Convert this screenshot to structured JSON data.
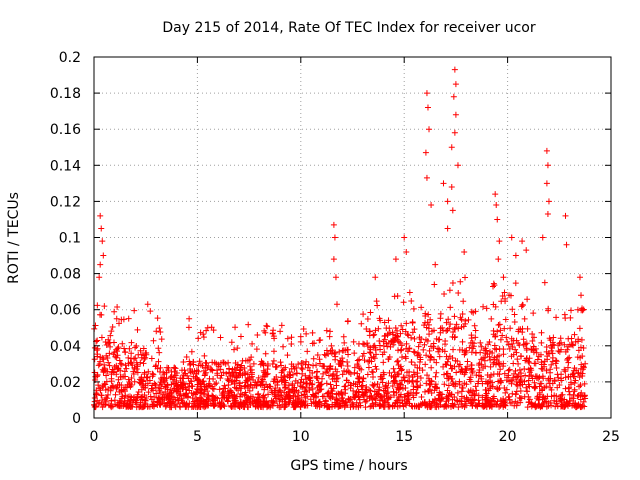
{
  "chart_data": {
    "type": "scatter",
    "title": "Day 215 of 2014, Rate Of TEC Index for receiver ucor",
    "xlabel": "GPS time / hours",
    "ylabel": "ROTI / TECUs",
    "xlim": [
      0,
      25
    ],
    "ylim": [
      0,
      0.2
    ],
    "xticks": [
      0,
      5,
      10,
      15,
      20,
      25
    ],
    "xtick_labels": [
      "0",
      "5",
      "10",
      "15",
      "20",
      "25"
    ],
    "yticks": [
      0,
      0.02,
      0.04,
      0.06,
      0.08,
      0.1,
      0.12,
      0.14,
      0.16,
      0.18,
      0.2
    ],
    "ytick_labels": [
      "0",
      "0.02",
      "0.04",
      "0.06",
      "0.08",
      "0.1",
      "0.12",
      "0.14",
      "0.16",
      "0.18",
      "0.2"
    ],
    "grid": true,
    "marker": "+",
    "color": "#ff0000",
    "series": [
      {
        "name": "ROTI",
        "description_of_distribution": "dense band 0.005-0.04 across 0-23.7 h",
        "spikes": [
          {
            "x": 0.3,
            "y": 0.112
          },
          {
            "x": 0.35,
            "y": 0.105
          },
          {
            "x": 0.4,
            "y": 0.098
          },
          {
            "x": 0.45,
            "y": 0.09
          },
          {
            "x": 0.3,
            "y": 0.085
          },
          {
            "x": 0.25,
            "y": 0.078
          },
          {
            "x": 0.5,
            "y": 0.062
          },
          {
            "x": 1.1,
            "y": 0.055
          },
          {
            "x": 2.6,
            "y": 0.063
          },
          {
            "x": 4.6,
            "y": 0.055
          },
          {
            "x": 5.5,
            "y": 0.05
          },
          {
            "x": 7.9,
            "y": 0.046
          },
          {
            "x": 9.0,
            "y": 0.048
          },
          {
            "x": 11.6,
            "y": 0.107
          },
          {
            "x": 11.65,
            "y": 0.1
          },
          {
            "x": 11.6,
            "y": 0.088
          },
          {
            "x": 11.7,
            "y": 0.078
          },
          {
            "x": 11.75,
            "y": 0.063
          },
          {
            "x": 13.6,
            "y": 0.078
          },
          {
            "x": 14.6,
            "y": 0.088
          },
          {
            "x": 15.0,
            "y": 0.1
          },
          {
            "x": 15.1,
            "y": 0.092
          },
          {
            "x": 16.1,
            "y": 0.18
          },
          {
            "x": 16.15,
            "y": 0.172
          },
          {
            "x": 16.2,
            "y": 0.16
          },
          {
            "x": 16.05,
            "y": 0.147
          },
          {
            "x": 16.1,
            "y": 0.133
          },
          {
            "x": 16.3,
            "y": 0.118
          },
          {
            "x": 16.5,
            "y": 0.085
          },
          {
            "x": 16.9,
            "y": 0.13
          },
          {
            "x": 17.1,
            "y": 0.12
          },
          {
            "x": 17.3,
            "y": 0.15
          },
          {
            "x": 17.45,
            "y": 0.193
          },
          {
            "x": 17.5,
            "y": 0.185
          },
          {
            "x": 17.4,
            "y": 0.178
          },
          {
            "x": 17.5,
            "y": 0.168
          },
          {
            "x": 17.45,
            "y": 0.158
          },
          {
            "x": 17.6,
            "y": 0.14
          },
          {
            "x": 17.3,
            "y": 0.128
          },
          {
            "x": 17.35,
            "y": 0.115
          },
          {
            "x": 17.1,
            "y": 0.105
          },
          {
            "x": 17.9,
            "y": 0.092
          },
          {
            "x": 19.4,
            "y": 0.124
          },
          {
            "x": 19.45,
            "y": 0.118
          },
          {
            "x": 19.5,
            "y": 0.11
          },
          {
            "x": 19.6,
            "y": 0.098
          },
          {
            "x": 19.55,
            "y": 0.088
          },
          {
            "x": 19.8,
            "y": 0.078
          },
          {
            "x": 20.2,
            "y": 0.1
          },
          {
            "x": 20.4,
            "y": 0.09
          },
          {
            "x": 20.7,
            "y": 0.098
          },
          {
            "x": 20.9,
            "y": 0.093
          },
          {
            "x": 21.7,
            "y": 0.1
          },
          {
            "x": 21.9,
            "y": 0.148
          },
          {
            "x": 21.95,
            "y": 0.14
          },
          {
            "x": 21.9,
            "y": 0.13
          },
          {
            "x": 22.0,
            "y": 0.12
          },
          {
            "x": 21.95,
            "y": 0.113
          },
          {
            "x": 21.8,
            "y": 0.075
          },
          {
            "x": 22.8,
            "y": 0.112
          },
          {
            "x": 22.85,
            "y": 0.096
          },
          {
            "x": 23.5,
            "y": 0.078
          },
          {
            "x": 23.55,
            "y": 0.068
          },
          {
            "x": 23.4,
            "y": 0.06
          }
        ]
      }
    ]
  }
}
